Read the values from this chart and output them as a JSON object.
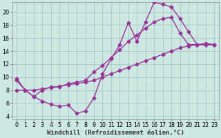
{
  "background_color": "#cce8e0",
  "grid_color": "#aacccc",
  "line_color": "#993399",
  "marker": "D",
  "markersize": 2.5,
  "linewidth": 1.0,
  "xlabel": "Windchill (Refroidissement éolien,°C)",
  "xlabel_fontsize": 6.5,
  "tick_fontsize": 5.8,
  "xlim": [
    -0.5,
    23.5
  ],
  "ylim": [
    3.5,
    21.5
  ],
  "xticks": [
    0,
    1,
    2,
    3,
    4,
    5,
    6,
    7,
    8,
    9,
    10,
    11,
    12,
    13,
    14,
    15,
    16,
    17,
    18,
    19,
    20,
    21,
    22,
    23
  ],
  "yticks": [
    4,
    6,
    8,
    10,
    12,
    14,
    16,
    18,
    20
  ],
  "series1_x": [
    0,
    1,
    2,
    3,
    4,
    5,
    6,
    7,
    8,
    9,
    10,
    11,
    12,
    13,
    14,
    15,
    16,
    17,
    18,
    19,
    20,
    21,
    22,
    23
  ],
  "series1_y": [
    9.8,
    8.0,
    7.0,
    6.3,
    5.8,
    5.5,
    5.7,
    4.4,
    4.8,
    6.8,
    10.5,
    12.8,
    15.0,
    18.4,
    15.5,
    18.5,
    21.5,
    21.2,
    20.8,
    19.0,
    17.0,
    15.0,
    15.0,
    15.0
  ],
  "series2_x": [
    0,
    1,
    2,
    3,
    4,
    5,
    6,
    7,
    8,
    9,
    10,
    11,
    12,
    13,
    14,
    15,
    16,
    17,
    18,
    19,
    20,
    21,
    22,
    23
  ],
  "series2_y": [
    9.5,
    8.0,
    7.0,
    8.0,
    8.5,
    8.5,
    9.0,
    9.2,
    9.5,
    10.8,
    11.8,
    13.0,
    14.2,
    15.5,
    16.5,
    17.5,
    18.5,
    19.0,
    19.2,
    16.8,
    15.0,
    15.0,
    15.0,
    15.0
  ],
  "series3_x": [
    0,
    1,
    2,
    3,
    4,
    5,
    6,
    7,
    8,
    9,
    10,
    11,
    12,
    13,
    14,
    15,
    16,
    17,
    18,
    19,
    20,
    21,
    22,
    23
  ],
  "series3_y": [
    8.0,
    8.0,
    8.0,
    8.2,
    8.4,
    8.6,
    8.8,
    9.0,
    9.2,
    9.5,
    10.0,
    10.5,
    11.0,
    11.5,
    12.0,
    12.5,
    13.0,
    13.5,
    14.0,
    14.5,
    14.8,
    15.0,
    15.2,
    15.0
  ]
}
